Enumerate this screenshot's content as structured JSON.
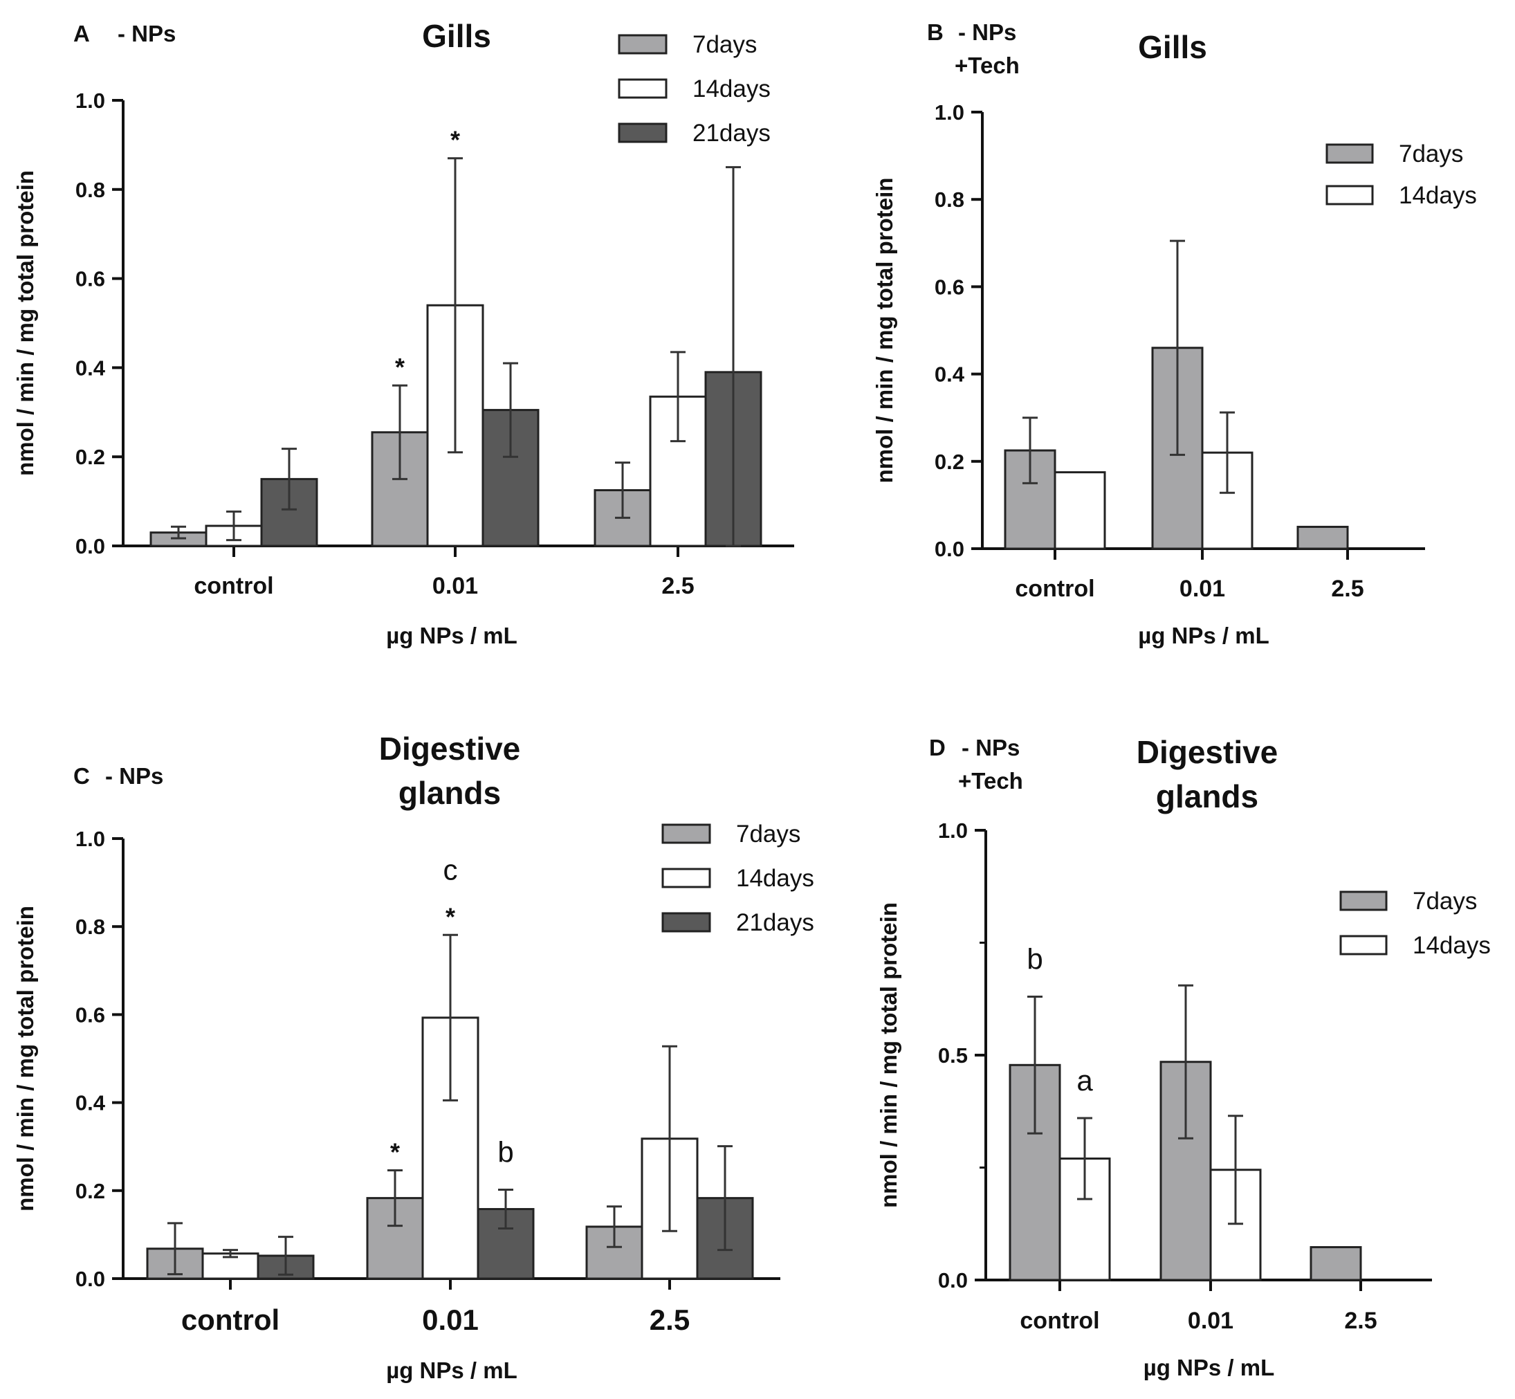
{
  "colors": {
    "7days": "#a6a6a8",
    "14days": "#ffffff",
    "21days": "#595959",
    "stroke": "#222222"
  },
  "chart_data": [
    {
      "id": "A",
      "type": "bar",
      "panel_label": "A",
      "panel_sub": [
        "- NPs"
      ],
      "title": [
        "Gills"
      ],
      "categories": [
        "control",
        "0.01",
        "2.5"
      ],
      "xlabel": "µg NPs / mL",
      "ylabel": "nmol / min / mg total protein",
      "ylim": [
        0,
        1.0
      ],
      "yticks": [
        "0.0",
        "0.2",
        "0.4",
        "0.6",
        "0.8",
        "1.0"
      ],
      "series": [
        {
          "name": "7days",
          "values": [
            0.03,
            0.255,
            0.125
          ],
          "errors": [
            0.013,
            0.105,
            0.062
          ]
        },
        {
          "name": "14days",
          "values": [
            0.045,
            0.54,
            0.335
          ],
          "errors": [
            0.032,
            0.33,
            0.1
          ]
        },
        {
          "name": "21days",
          "values": [
            0.15,
            0.305,
            0.39
          ],
          "errors": [
            0.068,
            0.105,
            0.46
          ]
        }
      ],
      "annotations": [
        {
          "series": "7days",
          "category": "0.01",
          "text": "*",
          "kind": "star"
        },
        {
          "series": "14days",
          "category": "0.01",
          "text": "*",
          "kind": "star"
        }
      ]
    },
    {
      "id": "B",
      "type": "bar",
      "panel_label": "B",
      "panel_sub": [
        "- NPs",
        "+Tech"
      ],
      "title": [
        "Gills"
      ],
      "categories": [
        "control",
        "0.01",
        "2.5"
      ],
      "xlabel": "µg NPs / mL",
      "ylabel": "nmol / min / mg total protein",
      "ylim": [
        0,
        1.0
      ],
      "yticks": [
        "0.0",
        "0.2",
        "0.4",
        "0.6",
        "0.8",
        "1.0"
      ],
      "series": [
        {
          "name": "7days",
          "values": [
            0.225,
            0.46,
            0.05
          ],
          "errors": [
            0.075,
            0.245,
            0
          ]
        },
        {
          "name": "14days",
          "values": [
            0.175,
            0.22,
            0
          ],
          "errors": [
            0,
            0.092,
            0
          ]
        }
      ],
      "annotations": []
    },
    {
      "id": "C",
      "type": "bar",
      "panel_label": "C",
      "panel_sub": [
        "- NPs"
      ],
      "title": [
        "Digestive",
        "glands"
      ],
      "categories": [
        "control",
        "0.01",
        "2.5"
      ],
      "xlabel": "µg NPs / mL",
      "ylabel": "nmol / min / mg total protein",
      "ylim": [
        0,
        1.0
      ],
      "yticks": [
        "0.0",
        "0.2",
        "0.4",
        "0.6",
        "0.8",
        "1.0"
      ],
      "series": [
        {
          "name": "7days",
          "values": [
            0.068,
            0.183,
            0.118
          ],
          "errors": [
            0.058,
            0.063,
            0.046
          ]
        },
        {
          "name": "14days",
          "values": [
            0.057,
            0.593,
            0.318
          ],
          "errors": [
            0.008,
            0.188,
            0.21
          ]
        },
        {
          "name": "21days",
          "values": [
            0.052,
            0.158,
            0.183
          ],
          "errors": [
            0.043,
            0.044,
            0.118
          ]
        }
      ],
      "annotations": [
        {
          "series": "7days",
          "category": "0.01",
          "text": "*",
          "kind": "star"
        },
        {
          "series": "14days",
          "category": "0.01",
          "text": "*",
          "kind": "star"
        },
        {
          "series": "14days",
          "category": "0.01",
          "text": "c",
          "kind": "letter"
        },
        {
          "series": "21days",
          "category": "0.01",
          "text": "b",
          "kind": "letter"
        }
      ]
    },
    {
      "id": "D",
      "type": "bar",
      "panel_label": "D",
      "panel_sub": [
        "- NPs",
        "+Tech"
      ],
      "title": [
        "Digestive",
        "glands"
      ],
      "categories": [
        "control",
        "0.01",
        "2.5"
      ],
      "xlabel": "µg NPs / mL",
      "ylabel": "nmol / min / mg total protein",
      "ylim": [
        0,
        1.0
      ],
      "yticks": [
        "0.0",
        "0.5",
        "1.0"
      ],
      "series": [
        {
          "name": "7days",
          "values": [
            0.478,
            0.485,
            0.073
          ],
          "errors": [
            0.152,
            0.17,
            0
          ]
        },
        {
          "name": "14days",
          "values": [
            0.27,
            0.245,
            0
          ],
          "errors": [
            0.09,
            0.12,
            0
          ]
        }
      ],
      "annotations": [
        {
          "series": "7days",
          "category": "control",
          "text": "b",
          "kind": "letter"
        },
        {
          "series": "14days",
          "category": "control",
          "text": "a",
          "kind": "letter"
        }
      ]
    }
  ]
}
